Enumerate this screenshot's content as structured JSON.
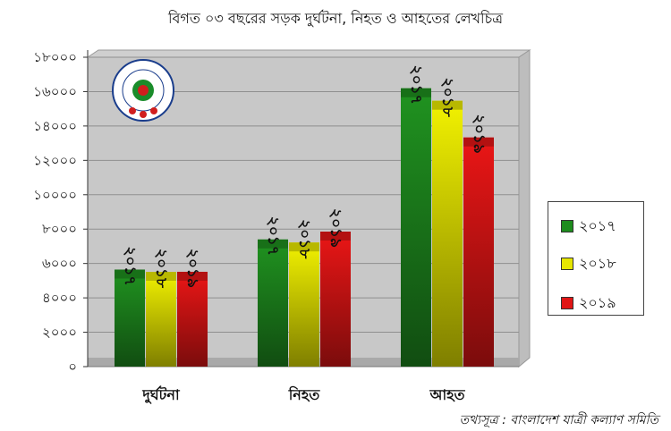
{
  "chart_data": {
    "type": "bar",
    "title": "বিগত ০৩ বছরের সড়ক দুর্ঘটনা, নিহত ও আহতের লেখচিত্র",
    "categories": [
      "দুর্ঘটনা",
      "নিহত",
      "আহত"
    ],
    "series": [
      {
        "name": "২০১৭",
        "values": [
          5645,
          7397,
          16193
        ],
        "color": "#1e8c1e"
      },
      {
        "name": "২০১৮",
        "values": [
          5514,
          7221,
          15466
        ],
        "color": "#e6e600"
      },
      {
        "name": "২০১৯",
        "values": [
          5516,
          7855,
          13330
        ],
        "color": "#e01515"
      }
    ],
    "ylim": [
      0,
      18000
    ],
    "yticks": [
      "০",
      "২০০০",
      "৪০০০",
      "৬০০০",
      "৮০০০",
      "১০০০০",
      "১২০০০",
      "১৪০০০",
      "১৬০০০",
      "১৮০০০"
    ],
    "grid": true,
    "legend": "right",
    "logo": "বাংলাদেশ যাত্রী কল্যাণ সমিতি"
  },
  "source_note": "তথ্যসূত্র : বাংলাদেশ যাত্রী কল্যাণ সমিতি"
}
